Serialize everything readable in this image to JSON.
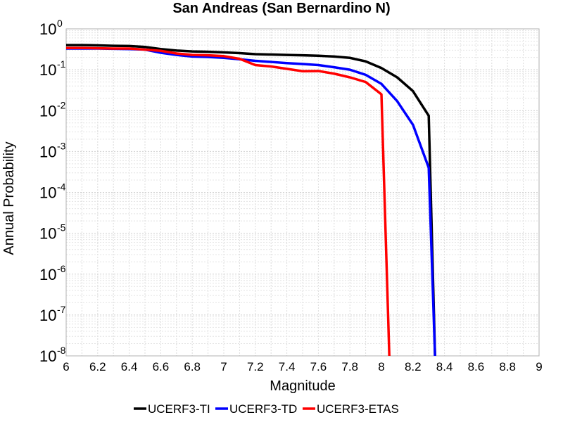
{
  "chart_data": {
    "type": "line",
    "title": "San Andreas (San Bernardino N)",
    "xlabel": "Magnitude",
    "ylabel": "Annual Probability",
    "xlim": [
      6,
      9
    ],
    "ylim": [
      1e-08,
      1
    ],
    "yscale": "log",
    "grid": true,
    "legend_position": "bottom",
    "x_ticks": [
      "6",
      "6.2",
      "6.4",
      "6.6",
      "6.8",
      "7",
      "7.2",
      "7.4",
      "7.6",
      "7.8",
      "8",
      "8.2",
      "8.4",
      "8.6",
      "8.8",
      "9"
    ],
    "y_tick_base": "10",
    "y_tick_exponents": [
      "0",
      "-1",
      "-2",
      "-3",
      "-4",
      "-5",
      "-6",
      "-7",
      "-8"
    ],
    "series": [
      {
        "name": "UCERF3-TI",
        "color": "#000000",
        "x": [
          6.0,
          6.1,
          6.2,
          6.3,
          6.4,
          6.5,
          6.6,
          6.7,
          6.8,
          6.9,
          7.0,
          7.1,
          7.2,
          7.3,
          7.4,
          7.5,
          7.6,
          7.7,
          7.8,
          7.9,
          8.0,
          8.1,
          8.2,
          8.3,
          8.34
        ],
        "y": [
          0.4,
          0.4,
          0.395,
          0.385,
          0.38,
          0.36,
          0.32,
          0.295,
          0.28,
          0.275,
          0.265,
          0.255,
          0.24,
          0.235,
          0.23,
          0.225,
          0.22,
          0.21,
          0.195,
          0.16,
          0.11,
          0.065,
          0.03,
          0.0075,
          1e-08
        ]
      },
      {
        "name": "UCERF3-TD",
        "color": "#0000ff",
        "x": [
          6.0,
          6.1,
          6.2,
          6.3,
          6.4,
          6.5,
          6.6,
          6.7,
          6.8,
          6.9,
          7.0,
          7.1,
          7.2,
          7.3,
          7.4,
          7.5,
          7.6,
          7.7,
          7.8,
          7.9,
          8.0,
          8.1,
          8.2,
          8.3,
          8.34
        ],
        "y": [
          0.33,
          0.33,
          0.33,
          0.325,
          0.32,
          0.31,
          0.26,
          0.23,
          0.21,
          0.205,
          0.195,
          0.18,
          0.165,
          0.155,
          0.145,
          0.138,
          0.13,
          0.115,
          0.1,
          0.075,
          0.045,
          0.017,
          0.0045,
          0.0004,
          1e-08
        ]
      },
      {
        "name": "UCERF3-ETAS",
        "color": "#ff0000",
        "x": [
          6.0,
          6.1,
          6.2,
          6.3,
          6.4,
          6.5,
          6.6,
          6.7,
          6.8,
          6.9,
          7.0,
          7.1,
          7.2,
          7.3,
          7.4,
          7.5,
          7.6,
          7.7,
          7.8,
          7.9,
          8.0,
          8.05
        ],
        "y": [
          0.34,
          0.34,
          0.335,
          0.33,
          0.33,
          0.31,
          0.29,
          0.25,
          0.23,
          0.225,
          0.215,
          0.185,
          0.13,
          0.12,
          0.105,
          0.092,
          0.093,
          0.08,
          0.065,
          0.05,
          0.025,
          1e-08
        ]
      }
    ]
  }
}
